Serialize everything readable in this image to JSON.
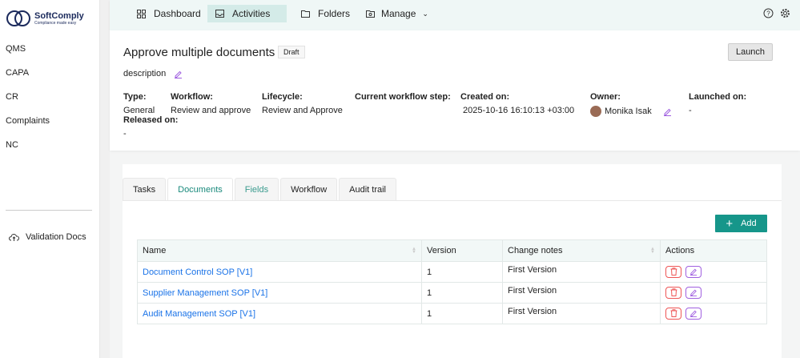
{
  "brand": {
    "name": "SoftComply",
    "tagline": "Compliance made easy"
  },
  "sidebar": {
    "items": [
      {
        "label": "QMS"
      },
      {
        "label": "CAPA"
      },
      {
        "label": "CR"
      },
      {
        "label": "Complaints"
      },
      {
        "label": "NC"
      }
    ],
    "footer": {
      "label": "Validation Docs",
      "icon": "cloud-upload-icon"
    }
  },
  "nav": {
    "items": [
      {
        "label": "Dashboard",
        "icon": "grid-icon"
      },
      {
        "label": "Activities",
        "icon": "inbox-icon",
        "active": true
      },
      {
        "label": "Folders",
        "icon": "folder-icon"
      },
      {
        "label": "Manage",
        "icon": "folder-settings-icon"
      }
    ]
  },
  "activity": {
    "title": "Approve multiple documents",
    "status": "Draft",
    "launch_label": "Launch",
    "description": "description",
    "fields": {
      "type": {
        "label": "Type:",
        "value": "General"
      },
      "workflow": {
        "label": "Workflow:",
        "value": "Review and approve"
      },
      "lifecycle": {
        "label": "Lifecycle:",
        "value": "Review and Approve"
      },
      "step": {
        "label": "Current workflow step:",
        "value": ""
      },
      "created": {
        "label": "Created on:",
        "value": "2025-10-16 16:10:13 +03:00"
      },
      "owner": {
        "label": "Owner:",
        "value": "Monika Isak"
      },
      "launched": {
        "label": "Launched on:",
        "value": "-"
      },
      "released": {
        "label": "Released on:",
        "value": "-"
      }
    }
  },
  "tabs": [
    {
      "label": "Tasks"
    },
    {
      "label": "Documents",
      "active": true
    },
    {
      "label": "Fields"
    },
    {
      "label": "Workflow"
    },
    {
      "label": "Audit trail"
    }
  ],
  "documents": {
    "add_label": "Add",
    "columns": [
      "Name",
      "Version",
      "Change notes",
      "Actions"
    ],
    "rows": [
      {
        "name": "Document Control SOP [V1]",
        "version": "1",
        "notes": "First Version"
      },
      {
        "name": "Supplier Management SOP [V1]",
        "version": "1",
        "notes": "First Version"
      },
      {
        "name": "Audit Management SOP [V1]",
        "version": "1",
        "notes": "First Version"
      }
    ]
  },
  "colors": {
    "accent": "#16968a",
    "link": "#1a73e8",
    "delete": "#ee5555",
    "edit": "#a060e0"
  }
}
